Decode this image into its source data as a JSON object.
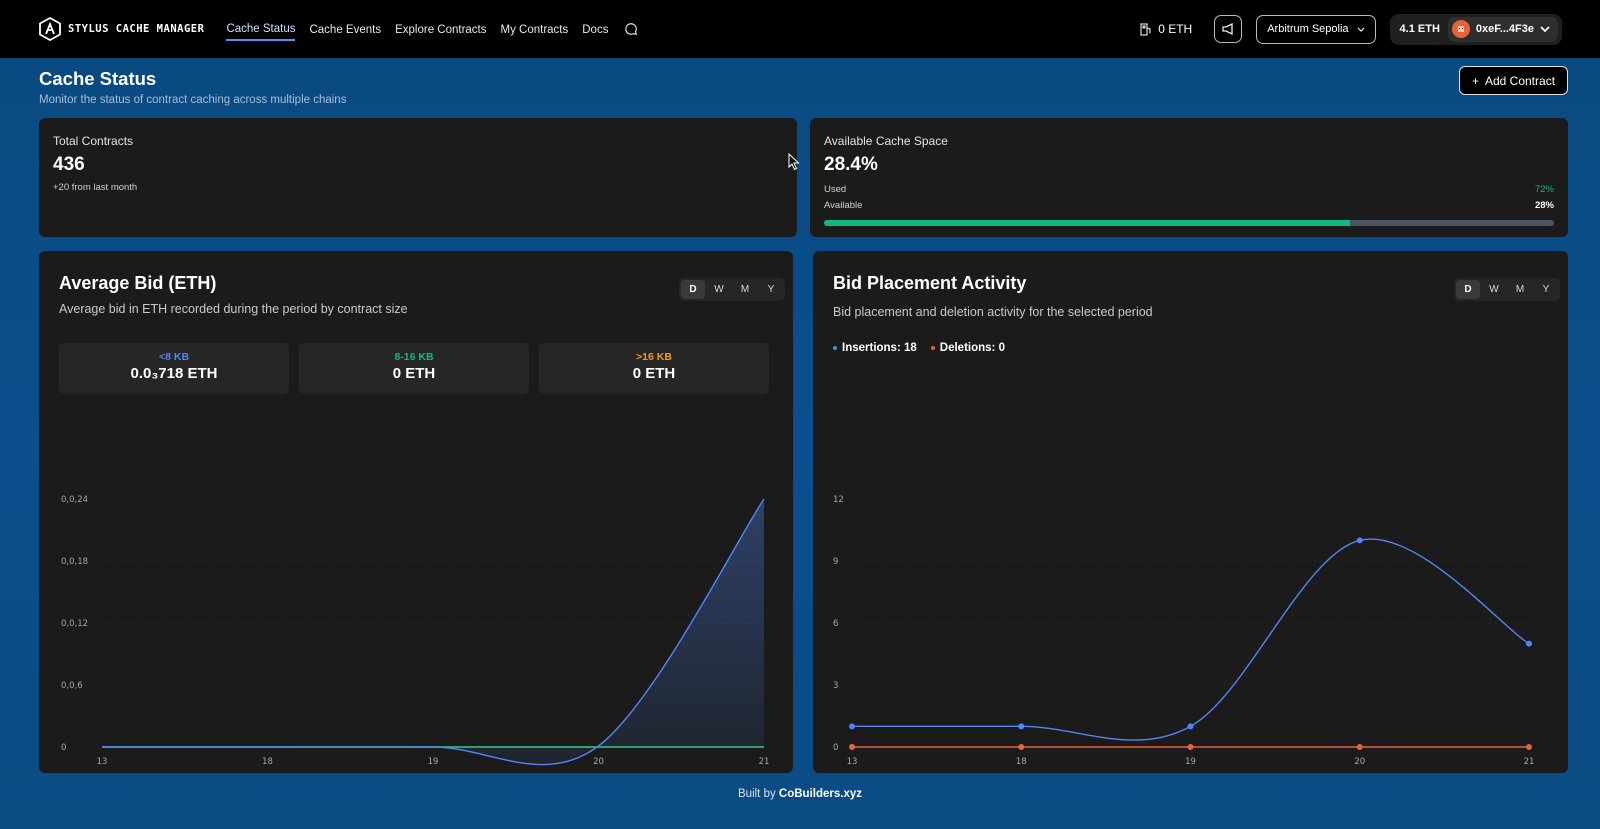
{
  "nav": {
    "brand": "STYLUS CACHE MANAGER",
    "links": [
      {
        "label": "Cache Status",
        "active": true
      },
      {
        "label": "Cache Events",
        "active": false
      },
      {
        "label": "Explore Contracts",
        "active": false
      },
      {
        "label": "My Contracts",
        "active": false
      },
      {
        "label": "Docs",
        "active": false
      }
    ],
    "gas_label": "0 ETH",
    "network": "Arbitrum Sepolia",
    "wallet_balance": "4.1 ETH",
    "wallet_address": "0xeF...4F3e"
  },
  "page": {
    "title": "Cache Status",
    "subtitle": "Monitor the status of contract caching across multiple chains",
    "add_button": "Add Contract"
  },
  "stats": {
    "total": {
      "label": "Total Contracts",
      "value": "436",
      "note": "+20 from last month"
    },
    "cache": {
      "label": "Available Cache Space",
      "value": "28.4%",
      "used_label": "Used",
      "used_value": "72%",
      "used_fraction": 0.72,
      "available_label": "Available",
      "available_value": "28%"
    }
  },
  "avg_bid": {
    "title": "Average Bid (ETH)",
    "description": "Average bid in ETH recorded during the period by contract size",
    "periods": [
      "D",
      "W",
      "M",
      "Y"
    ],
    "active_period": "D",
    "sizes": [
      {
        "label": "<8 KB",
        "value": "0.0₃718 ETH",
        "color": "#4f86f7"
      },
      {
        "label": "8-16 KB",
        "value": "0 ETH",
        "color": "#10b981"
      },
      {
        "label": ">16 KB",
        "value": "0 ETH",
        "color": "#f59e0b"
      }
    ]
  },
  "bid_activity": {
    "title": "Bid Placement Activity",
    "description": "Bid placement and deletion activity for the selected period",
    "periods": [
      "D",
      "W",
      "M",
      "Y"
    ],
    "active_period": "D",
    "legend": [
      {
        "label": "Insertions: 18",
        "color": "#4f86f7"
      },
      {
        "label": "Deletions: 0",
        "color": "#e8613c"
      }
    ]
  },
  "chart_data": [
    {
      "type": "area",
      "title": "Average Bid (ETH)",
      "x": [
        "13",
        "18",
        "19",
        "20",
        "21"
      ],
      "y_ticks": [
        "0",
        "0,0,6",
        "0,0,12",
        "0,0,18",
        "0,0,24"
      ],
      "ylim": [
        0,
        0.24
      ],
      "series": [
        {
          "name": "<8 KB",
          "color": "#4f86f7",
          "values": [
            0,
            0,
            0,
            0.001,
            0.24
          ]
        },
        {
          "name": "8-16 KB",
          "color": "#10b981",
          "values": [
            0,
            0,
            0,
            0,
            0
          ]
        },
        {
          "name": ">16 KB",
          "color": "#f59e0b",
          "values": [
            0,
            0,
            0,
            0,
            0
          ]
        }
      ]
    },
    {
      "type": "line",
      "title": "Bid Placement Activity",
      "x": [
        "13",
        "18",
        "19",
        "20",
        "21"
      ],
      "y_ticks": [
        "0",
        "3",
        "6",
        "9",
        "12"
      ],
      "ylim": [
        0,
        12
      ],
      "series": [
        {
          "name": "Insertions",
          "color": "#4f86f7",
          "values": [
            1,
            1,
            1,
            10,
            5
          ]
        },
        {
          "name": "Deletions",
          "color": "#e8613c",
          "values": [
            0,
            0,
            0,
            0,
            0
          ]
        }
      ]
    }
  ],
  "footer": {
    "prefix": "Built by",
    "brand": "CoBuilders.xyz"
  }
}
